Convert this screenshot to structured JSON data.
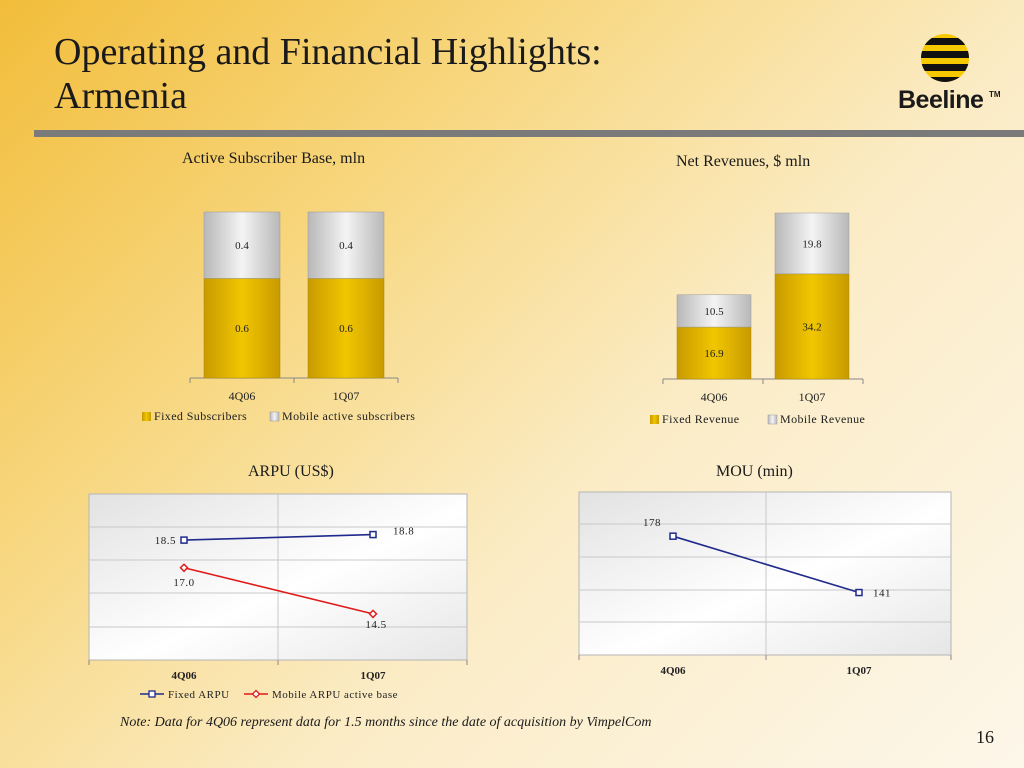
{
  "slide": {
    "title_line1": "Operating and Financial Highlights:",
    "title_line2": "Armenia",
    "logo_text": "Beeline",
    "logo_tm": "TM",
    "note": "Note:  Data for 4Q06 represent data for 1.5 months since the date of acquisition by VimpelCom",
    "page_number": "16"
  },
  "colors": {
    "fixed": "#d9ad00",
    "mobile": "#d6d6d6",
    "fixed_arpu": "#1f2a8a",
    "mobile_arpu": "#e01a1a",
    "mou": "#1f2a8a"
  },
  "chart_data": [
    {
      "type": "bar",
      "stacked": true,
      "title": "Active Subscriber Base, mln",
      "categories": [
        "4Q06",
        "1Q07"
      ],
      "series": [
        {
          "name": "Fixed Subscribers",
          "values": [
            0.6,
            0.6
          ],
          "labels": [
            "0.6",
            "0.6"
          ]
        },
        {
          "name": "Mobile active subscribers",
          "values": [
            0.4,
            0.4
          ],
          "labels": [
            "0.4",
            "0.4"
          ]
        }
      ],
      "legend": "bottom"
    },
    {
      "type": "bar",
      "stacked": true,
      "title": "Net Revenues, $ mln",
      "categories": [
        "4Q06",
        "1Q07"
      ],
      "series": [
        {
          "name": "Fixed Revenue",
          "values": [
            16.9,
            34.2
          ],
          "labels": [
            "16.9",
            "34.2"
          ]
        },
        {
          "name": "Mobile Revenue",
          "values": [
            10.5,
            19.8
          ],
          "labels": [
            "10.5",
            "19.8"
          ]
        }
      ],
      "legend": "bottom"
    },
    {
      "type": "line",
      "title": "ARPU (US$)",
      "categories": [
        "4Q06",
        "1Q07"
      ],
      "series": [
        {
          "name": "Fixed ARPU",
          "values": [
            18.5,
            18.8
          ],
          "labels": [
            "18.5",
            "18.8"
          ]
        },
        {
          "name": "Mobile ARPU active base",
          "values": [
            17.0,
            14.5
          ],
          "labels": [
            "17.0",
            "14.5"
          ]
        }
      ],
      "grid": true,
      "legend": "bottom"
    },
    {
      "type": "line",
      "title": "MOU (min)",
      "categories": [
        "4Q06",
        "1Q07"
      ],
      "series": [
        {
          "values": [
            178,
            141
          ],
          "labels": [
            "178",
            "141"
          ]
        }
      ],
      "grid": true
    }
  ]
}
